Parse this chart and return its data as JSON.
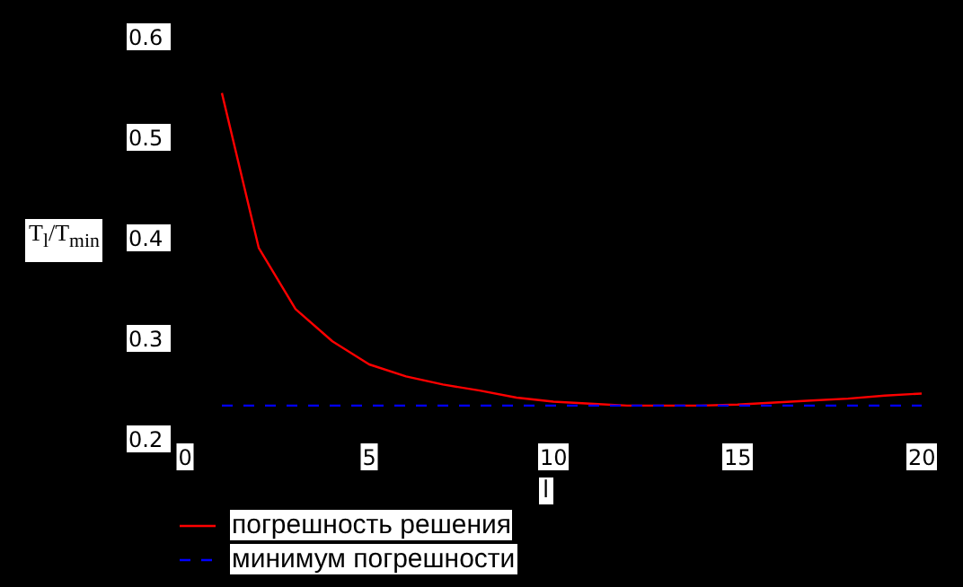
{
  "chart_data": {
    "type": "line",
    "xlabel": "l",
    "ylabel": "T$_{l}$/T$_{min}$",
    "x": [
      1,
      2,
      3,
      4,
      5,
      6,
      7,
      8,
      9,
      10,
      11,
      12,
      13,
      14,
      15,
      16,
      17,
      18,
      19,
      20
    ],
    "series": [
      {
        "name": "погрешность решения",
        "color": "#ff0000",
        "line_style": "solid",
        "values": [
          0.545,
          0.391,
          0.33,
          0.298,
          0.275,
          0.263,
          0.255,
          0.249,
          0.242,
          0.238,
          0.236,
          0.234,
          0.234,
          0.234,
          0.235,
          0.237,
          0.239,
          0.241,
          0.244,
          0.246
        ]
      },
      {
        "name": "минимум погрешности",
        "color": "#0000ff",
        "line_style": "dashed",
        "values": [
          0.234,
          0.234,
          0.234,
          0.234,
          0.234,
          0.234,
          0.234,
          0.234,
          0.234,
          0.234,
          0.234,
          0.234,
          0.234,
          0.234,
          0.234,
          0.234,
          0.234,
          0.234,
          0.234,
          0.234
        ]
      }
    ],
    "xlim": [
      0,
      20
    ],
    "xticks": [
      0,
      5,
      10,
      15,
      20
    ],
    "ylim": [
      0.2,
      0.6
    ],
    "yticks": [
      0.2,
      0.3,
      0.4,
      0.5,
      0.6
    ],
    "marker": "none",
    "legend": "bottom"
  }
}
